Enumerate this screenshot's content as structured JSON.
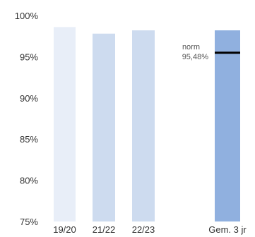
{
  "chart_data": {
    "type": "bar",
    "categories": [
      "19/20",
      "21/22",
      "22/23",
      "Gem. 3 jr"
    ],
    "values": [
      98.6,
      97.8,
      98.2,
      98.2
    ],
    "ylim": [
      75,
      100
    ],
    "yticks": [
      75,
      80,
      85,
      90,
      95,
      100
    ],
    "ytick_labels": [
      "75%",
      "80%",
      "85%",
      "90%",
      "95%",
      "100%"
    ],
    "grid": false,
    "colors": [
      "#e8eef8",
      "#cddbef",
      "#cddbef",
      "#90b0df"
    ],
    "reference_line": {
      "value": 95.48,
      "label": "norm",
      "value_label": "95,48%",
      "color": "#000000",
      "category": "Gem. 3 jr"
    }
  }
}
